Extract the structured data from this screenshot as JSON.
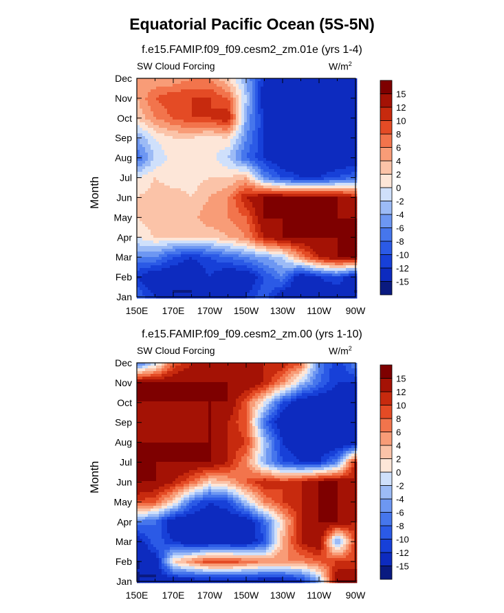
{
  "title": "Equatorial Pacific Ocean (5S-5N)",
  "chart_data": [
    {
      "type": "heatmap",
      "subtitle": "f.e15.FAMIP.f09_f09.cesm2_zm.01e (yrs 1-4)",
      "field": "SW Cloud Forcing",
      "units": "W/m",
      "units_sup": "2",
      "ylabel": "Month",
      "x_labels": [
        "150E",
        "170E",
        "170W",
        "150W",
        "130W",
        "110W",
        "90W"
      ],
      "x_values": [
        150,
        170,
        190,
        210,
        230,
        250,
        270
      ],
      "y_labels": [
        "Jan",
        "Feb",
        "Mar",
        "Apr",
        "May",
        "Jun",
        "Jul",
        "Aug",
        "Sep",
        "Oct",
        "Nov",
        "Dec"
      ],
      "levels": [
        -15,
        -12,
        -10,
        -8,
        -6,
        -4,
        -2,
        0,
        2,
        4,
        6,
        8,
        10,
        12,
        15
      ],
      "colors": [
        "#0a1a80",
        "#0d2bbf",
        "#1740d8",
        "#2b5ae6",
        "#4676ec",
        "#6d97f2",
        "#9cbbf6",
        "#cfe0fb",
        "#fde6d8",
        "#fbc3a8",
        "#f89c77",
        "#f2744c",
        "#e44b25",
        "#c72a0e",
        "#a41205",
        "#7e0000"
      ],
      "x_grid": [
        150,
        160,
        170,
        180,
        190,
        200,
        210,
        220,
        230,
        240,
        250,
        260,
        270
      ],
      "values": [
        [
          -8,
          -12,
          -15,
          -15,
          -15,
          -15,
          -12,
          -8,
          -15,
          -15,
          -15,
          -15,
          -15
        ],
        [
          -12,
          -15,
          -15,
          -15,
          -12,
          -15,
          -15,
          -10,
          -6,
          -15,
          -12,
          -10,
          -15
        ],
        [
          -6,
          -6,
          -10,
          -12,
          -10,
          -8,
          -6,
          -4,
          -2,
          6,
          12,
          15,
          15
        ],
        [
          0,
          2,
          2,
          2,
          2,
          4,
          6,
          12,
          15,
          15,
          15,
          15,
          15
        ],
        [
          2,
          4,
          4,
          3,
          6,
          6,
          8,
          15,
          15,
          15,
          15,
          15,
          15
        ],
        [
          2,
          3,
          3,
          2,
          4,
          6,
          12,
          15,
          15,
          15,
          15,
          15,
          12
        ],
        [
          0,
          2,
          1,
          1,
          2,
          2,
          4,
          -6,
          -10,
          -12,
          -12,
          -10,
          -8
        ],
        [
          -8,
          -2,
          1,
          1,
          1,
          -2,
          -8,
          -12,
          -15,
          -15,
          -15,
          -15,
          -15
        ],
        [
          -4,
          0,
          2,
          2,
          1,
          2,
          -6,
          -12,
          -12,
          -15,
          -15,
          -15,
          -15
        ],
        [
          2,
          6,
          8,
          10,
          10,
          12,
          -4,
          -12,
          -15,
          -15,
          -15,
          -15,
          -15
        ],
        [
          4,
          8,
          10,
          10,
          10,
          8,
          -2,
          -15,
          -15,
          -15,
          -15,
          -15,
          -15
        ],
        [
          4,
          4,
          4,
          6,
          6,
          2,
          -4,
          -12,
          -15,
          -15,
          -15,
          -15,
          -15
        ]
      ]
    },
    {
      "type": "heatmap",
      "subtitle": "f.e15.FAMIP.f09_f09.cesm2_zm.00 (yrs 1-10)",
      "field": "SW Cloud Forcing",
      "units": "W/m",
      "units_sup": "2",
      "ylabel": "Month",
      "x_labels": [
        "150E",
        "170E",
        "170W",
        "150W",
        "130W",
        "110W",
        "90W"
      ],
      "x_values": [
        150,
        170,
        190,
        210,
        230,
        250,
        270
      ],
      "y_labels": [
        "Jan",
        "Feb",
        "Mar",
        "Apr",
        "May",
        "Jun",
        "Jul",
        "Aug",
        "Sep",
        "Oct",
        "Nov",
        "Dec"
      ],
      "levels": [
        -15,
        -12,
        -10,
        -8,
        -6,
        -4,
        -2,
        0,
        2,
        4,
        6,
        8,
        10,
        12,
        15
      ],
      "colors": [
        "#0a1a80",
        "#0d2bbf",
        "#1740d8",
        "#2b5ae6",
        "#4676ec",
        "#6d97f2",
        "#9cbbf6",
        "#cfe0fb",
        "#fde6d8",
        "#fbc3a8",
        "#f89c77",
        "#f2744c",
        "#e44b25",
        "#c72a0e",
        "#a41205",
        "#7e0000"
      ],
      "x_grid": [
        150,
        160,
        170,
        180,
        190,
        200,
        210,
        220,
        230,
        240,
        250,
        260,
        270
      ],
      "values": [
        [
          -15,
          -15,
          -15,
          -15,
          -15,
          -15,
          -15,
          -15,
          -15,
          -12,
          -4,
          15,
          15
        ],
        [
          -15,
          -15,
          2,
          6,
          10,
          10,
          8,
          6,
          6,
          6,
          8,
          10,
          10
        ],
        [
          -15,
          -8,
          -12,
          -15,
          -15,
          -15,
          -15,
          -10,
          4,
          12,
          15,
          -6,
          10
        ],
        [
          -6,
          -8,
          -15,
          -15,
          -15,
          -15,
          -15,
          -8,
          2,
          12,
          15,
          15,
          12
        ],
        [
          10,
          8,
          2,
          -8,
          -12,
          -10,
          -2,
          6,
          10,
          12,
          15,
          15,
          12
        ],
        [
          15,
          15,
          12,
          8,
          2,
          4,
          8,
          12,
          10,
          12,
          15,
          15,
          12
        ],
        [
          15,
          15,
          15,
          15,
          15,
          12,
          6,
          -4,
          -10,
          -12,
          -12,
          -6,
          12
        ],
        [
          15,
          15,
          15,
          15,
          15,
          12,
          10,
          -2,
          -12,
          -15,
          -15,
          -15,
          -15
        ],
        [
          12,
          12,
          12,
          12,
          15,
          12,
          8,
          -8,
          -15,
          -15,
          -15,
          -15,
          -15
        ],
        [
          15,
          15,
          15,
          15,
          15,
          15,
          8,
          0,
          -10,
          -15,
          -15,
          -15,
          -15
        ],
        [
          15,
          15,
          15,
          15,
          15,
          15,
          15,
          12,
          6,
          -2,
          -8,
          -12,
          -12
        ],
        [
          -8,
          -2,
          8,
          12,
          12,
          12,
          12,
          12,
          12,
          8,
          -6,
          -12,
          -6
        ]
      ]
    }
  ]
}
